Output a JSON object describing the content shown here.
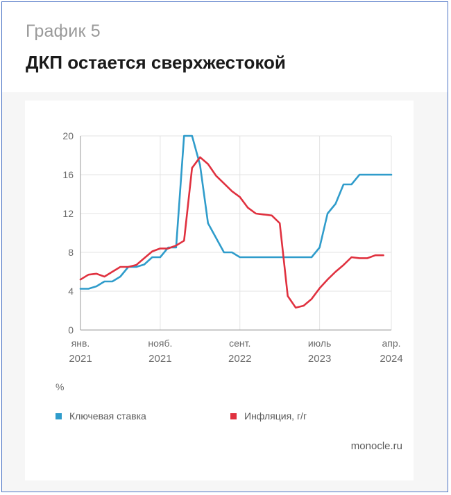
{
  "header": {
    "kicker": "График 5",
    "title": "ДКП остается сверхжестокой"
  },
  "source": "monocle.ru",
  "colors": {
    "key_rate": "#2f9ccb",
    "inflation": "#e0313f",
    "grid": "#e3e3e3",
    "axis_text": "#6b6b6b"
  },
  "chart_data": {
    "type": "line",
    "title": "",
    "xlabel": "",
    "ylabel": "%",
    "ylim": [
      0,
      20
    ],
    "yticks": [
      0,
      4,
      8,
      12,
      16,
      20
    ],
    "xlim": [
      "2021-01",
      "2024-04"
    ],
    "xticks": [
      {
        "at": "2021-01",
        "line1": "янв.",
        "line2": "2021"
      },
      {
        "at": "2021-11",
        "line1": "нояб.",
        "line2": "2021"
      },
      {
        "at": "2022-09",
        "line1": "сент.",
        "line2": "2022"
      },
      {
        "at": "2023-07",
        "line1": "июль",
        "line2": "2023"
      },
      {
        "at": "2024-04",
        "line1": "апр.",
        "line2": "2024"
      }
    ],
    "grid": true,
    "legend_position": "bottom",
    "series": [
      {
        "name": "Ключевая ставка",
        "points": [
          [
            "2021-01",
            4.25
          ],
          [
            "2021-02",
            4.25
          ],
          [
            "2021-03",
            4.5
          ],
          [
            "2021-04",
            5.0
          ],
          [
            "2021-05",
            5.0
          ],
          [
            "2021-06",
            5.5
          ],
          [
            "2021-07",
            6.5
          ],
          [
            "2021-08",
            6.5
          ],
          [
            "2021-09",
            6.75
          ],
          [
            "2021-10",
            7.5
          ],
          [
            "2021-11",
            7.5
          ],
          [
            "2021-12",
            8.5
          ],
          [
            "2022-01",
            8.5
          ],
          [
            "2022-02",
            20.0
          ],
          [
            "2022-03",
            20.0
          ],
          [
            "2022-04",
            17.0
          ],
          [
            "2022-05",
            11.0
          ],
          [
            "2022-06",
            9.5
          ],
          [
            "2022-07",
            8.0
          ],
          [
            "2022-08",
            8.0
          ],
          [
            "2022-09",
            7.5
          ],
          [
            "2022-10",
            7.5
          ],
          [
            "2022-11",
            7.5
          ],
          [
            "2022-12",
            7.5
          ],
          [
            "2023-01",
            7.5
          ],
          [
            "2023-02",
            7.5
          ],
          [
            "2023-03",
            7.5
          ],
          [
            "2023-04",
            7.5
          ],
          [
            "2023-05",
            7.5
          ],
          [
            "2023-06",
            7.5
          ],
          [
            "2023-07",
            8.5
          ],
          [
            "2023-08",
            12.0
          ],
          [
            "2023-09",
            13.0
          ],
          [
            "2023-10",
            15.0
          ],
          [
            "2023-11",
            15.0
          ],
          [
            "2023-12",
            16.0
          ],
          [
            "2024-01",
            16.0
          ],
          [
            "2024-02",
            16.0
          ],
          [
            "2024-03",
            16.0
          ],
          [
            "2024-04",
            16.0
          ]
        ]
      },
      {
        "name": "Инфляция, г/г",
        "points": [
          [
            "2021-01",
            5.2
          ],
          [
            "2021-02",
            5.7
          ],
          [
            "2021-03",
            5.8
          ],
          [
            "2021-04",
            5.5
          ],
          [
            "2021-05",
            6.0
          ],
          [
            "2021-06",
            6.5
          ],
          [
            "2021-07",
            6.5
          ],
          [
            "2021-08",
            6.7
          ],
          [
            "2021-09",
            7.4
          ],
          [
            "2021-10",
            8.1
          ],
          [
            "2021-11",
            8.4
          ],
          [
            "2021-12",
            8.4
          ],
          [
            "2022-01",
            8.7
          ],
          [
            "2022-02",
            9.2
          ],
          [
            "2022-03",
            16.7
          ],
          [
            "2022-04",
            17.8
          ],
          [
            "2022-05",
            17.1
          ],
          [
            "2022-06",
            15.9
          ],
          [
            "2022-07",
            15.1
          ],
          [
            "2022-08",
            14.3
          ],
          [
            "2022-09",
            13.7
          ],
          [
            "2022-10",
            12.6
          ],
          [
            "2022-11",
            12.0
          ],
          [
            "2022-12",
            11.9
          ],
          [
            "2023-01",
            11.8
          ],
          [
            "2023-02",
            11.0
          ],
          [
            "2023-03",
            3.5
          ],
          [
            "2023-04",
            2.3
          ],
          [
            "2023-05",
            2.5
          ],
          [
            "2023-06",
            3.2
          ],
          [
            "2023-07",
            4.3
          ],
          [
            "2023-08",
            5.2
          ],
          [
            "2023-09",
            6.0
          ],
          [
            "2023-10",
            6.7
          ],
          [
            "2023-11",
            7.5
          ],
          [
            "2023-12",
            7.4
          ],
          [
            "2024-01",
            7.4
          ],
          [
            "2024-02",
            7.7
          ],
          [
            "2024-03",
            7.7
          ]
        ]
      }
    ]
  }
}
